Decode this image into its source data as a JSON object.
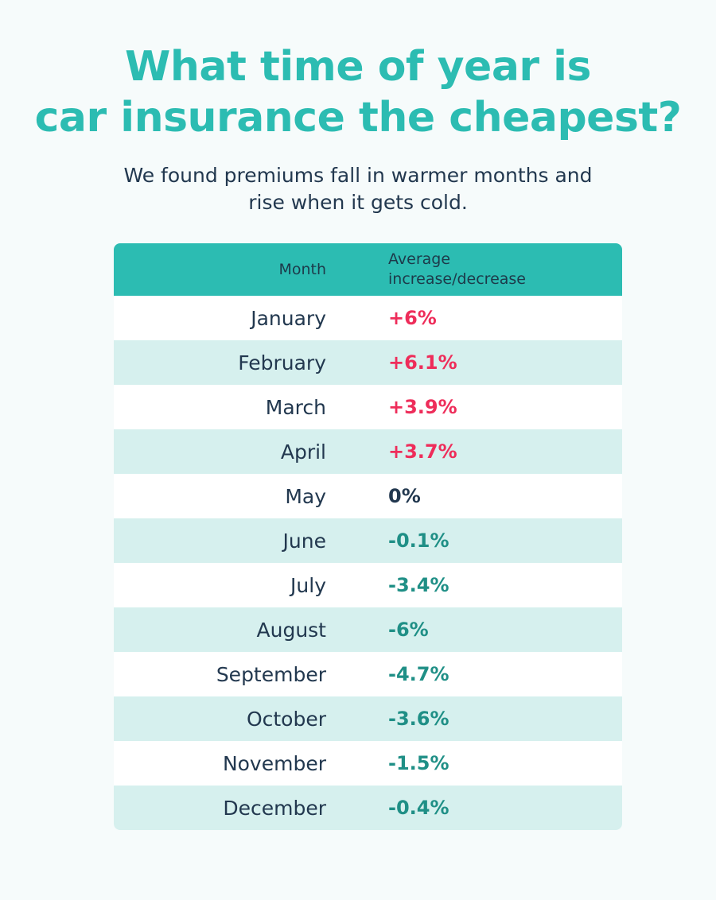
{
  "title_lines": [
    "What time of year is",
    "car insurance the cheapest?"
  ],
  "subtitle_lines": [
    "We found premiums fall in warmer months and",
    "rise when it gets cold."
  ],
  "colors": {
    "title": "#2cbcb2",
    "header_bg": "#2cbcb2",
    "increase": "#ee2d5a",
    "no_change": "#22384f",
    "decrease": "#1f8f86",
    "stripe": "#d6f0ee"
  },
  "chart_data": {
    "type": "table",
    "columns": [
      "Month",
      "Average increase/decrease"
    ],
    "header": {
      "month_label": "Month",
      "change_label_lines": [
        "Average",
        "increase/decrease"
      ]
    },
    "rows": [
      {
        "month": "January",
        "change": "+6%",
        "value": 6
      },
      {
        "month": "February",
        "change": "+6.1%",
        "value": 6.1
      },
      {
        "month": "March",
        "change": "+3.9%",
        "value": 3.9
      },
      {
        "month": "April",
        "change": "+3.7%",
        "value": 3.7
      },
      {
        "month": "May",
        "change": "0%",
        "value": 0
      },
      {
        "month": "June",
        "change": "-0.1%",
        "value": -0.1
      },
      {
        "month": "July",
        "change": "-3.4%",
        "value": -3.4
      },
      {
        "month": "August",
        "change": "-6%",
        "value": -6
      },
      {
        "month": "September",
        "change": "-4.7%",
        "value": -4.7
      },
      {
        "month": "October",
        "change": "-3.6%",
        "value": -3.6
      },
      {
        "month": "November",
        "change": "-1.5%",
        "value": -1.5
      },
      {
        "month": "December",
        "change": "-0.4%",
        "value": -0.4
      }
    ]
  }
}
